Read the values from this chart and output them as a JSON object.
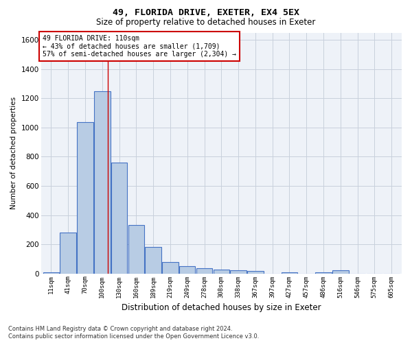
{
  "title1": "49, FLORIDA DRIVE, EXETER, EX4 5EX",
  "title2": "Size of property relative to detached houses in Exeter",
  "xlabel": "Distribution of detached houses by size in Exeter",
  "ylabel": "Number of detached properties",
  "bar_labels": [
    "11sqm",
    "41sqm",
    "70sqm",
    "100sqm",
    "130sqm",
    "160sqm",
    "189sqm",
    "219sqm",
    "249sqm",
    "278sqm",
    "308sqm",
    "338sqm",
    "367sqm",
    "397sqm",
    "427sqm",
    "457sqm",
    "486sqm",
    "516sqm",
    "546sqm",
    "575sqm",
    "605sqm"
  ],
  "bar_values": [
    10,
    280,
    1035,
    1250,
    760,
    330,
    180,
    80,
    48,
    35,
    25,
    20,
    15,
    0,
    10,
    0,
    10,
    20,
    0,
    0,
    0
  ],
  "bar_color": "#b8cce4",
  "bar_edge_color": "#4472c4",
  "bar_edge_width": 0.8,
  "grid_color": "#c8d0dc",
  "background_color": "#eef2f8",
  "ylim": [
    0,
    1650
  ],
  "yticks": [
    0,
    200,
    400,
    600,
    800,
    1000,
    1200,
    1400,
    1600
  ],
  "annotation_text": "49 FLORIDA DRIVE: 110sqm\n← 43% of detached houses are smaller (1,709)\n57% of semi-detached houses are larger (2,304) →",
  "annotation_box_color": "#ffffff",
  "annotation_box_edge": "#cc0000",
  "footer1": "Contains HM Land Registry data © Crown copyright and database right 2024.",
  "footer2": "Contains public sector information licensed under the Open Government Licence v3.0."
}
